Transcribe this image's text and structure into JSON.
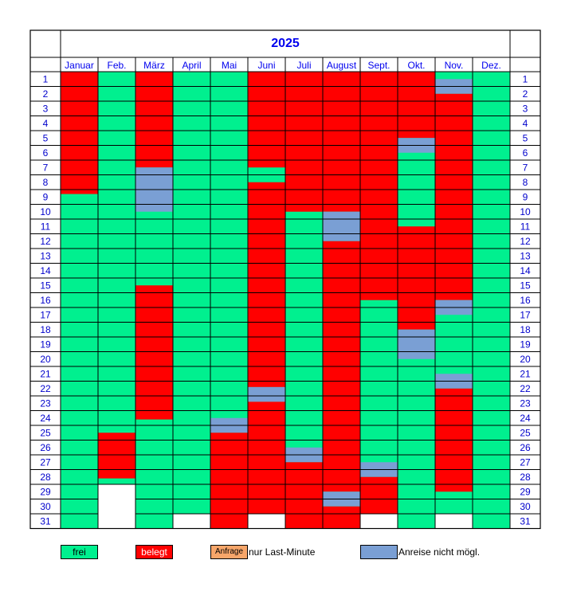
{
  "calendar": {
    "year": "2025",
    "months": [
      "Januar",
      "Feb.",
      "März",
      "April",
      "Mai",
      "Juni",
      "Juli",
      "August",
      "Sept.",
      "Okt.",
      "Nov.",
      "Dez."
    ],
    "month_days": [
      31,
      28,
      31,
      30,
      31,
      30,
      31,
      31,
      30,
      31,
      30,
      31
    ],
    "colors": {
      "frei": "#00F08F",
      "belegt": "#FF0000",
      "nicht": "#7A9FD4",
      "anfrage": "#F7A66A"
    },
    "bookings": [
      {
        "month": 0,
        "start": 1,
        "end": 9.3,
        "status": "belegt"
      },
      {
        "month": 2,
        "start": 1,
        "end": 7.5,
        "status": "belegt"
      },
      {
        "month": 2,
        "start": 7.5,
        "end": 10.5,
        "status": "nicht"
      },
      {
        "month": 2,
        "start": 15.5,
        "end": 24.6,
        "status": "belegt"
      },
      {
        "month": 1,
        "start": 25.5,
        "end": 28.6,
        "status": "belegt"
      },
      {
        "month": 4,
        "start": 24.5,
        "end": 25.5,
        "status": "nicht"
      },
      {
        "month": 4,
        "start": 25.5,
        "end": 32,
        "status": "belegt"
      },
      {
        "month": 5,
        "start": 1,
        "end": 7.5,
        "status": "belegt"
      },
      {
        "month": 5,
        "start": 8.5,
        "end": 22.4,
        "status": "belegt"
      },
      {
        "month": 5,
        "start": 22.4,
        "end": 23.4,
        "status": "nicht"
      },
      {
        "month": 5,
        "start": 23.4,
        "end": 31,
        "status": "belegt"
      },
      {
        "month": 6,
        "start": 1,
        "end": 10.5,
        "status": "belegt"
      },
      {
        "month": 6,
        "start": 26.5,
        "end": 27.5,
        "status": "nicht"
      },
      {
        "month": 6,
        "start": 27.5,
        "end": 32,
        "status": "belegt"
      },
      {
        "month": 7,
        "start": 1,
        "end": 10.5,
        "status": "belegt"
      },
      {
        "month": 7,
        "start": 10.5,
        "end": 12.5,
        "status": "nicht"
      },
      {
        "month": 7,
        "start": 12.5,
        "end": 29.5,
        "status": "belegt"
      },
      {
        "month": 7,
        "start": 29.5,
        "end": 30.5,
        "status": "nicht"
      },
      {
        "month": 7,
        "start": 30.5,
        "end": 32,
        "status": "belegt"
      },
      {
        "month": 8,
        "start": 1,
        "end": 16.5,
        "status": "belegt"
      },
      {
        "month": 8,
        "start": 27.5,
        "end": 28.5,
        "status": "nicht"
      },
      {
        "month": 8,
        "start": 28.5,
        "end": 31,
        "status": "belegt"
      },
      {
        "month": 9,
        "start": 1,
        "end": 5.5,
        "status": "belegt"
      },
      {
        "month": 9,
        "start": 5.5,
        "end": 6.5,
        "status": "nicht"
      },
      {
        "month": 9,
        "start": 11.5,
        "end": 18.5,
        "status": "belegt"
      },
      {
        "month": 9,
        "start": 18.5,
        "end": 20.5,
        "status": "nicht"
      },
      {
        "month": 10,
        "start": 1.5,
        "end": 2.5,
        "status": "nicht"
      },
      {
        "month": 10,
        "start": 2.5,
        "end": 16.5,
        "status": "belegt"
      },
      {
        "month": 10,
        "start": 16.5,
        "end": 17.5,
        "status": "nicht"
      },
      {
        "month": 10,
        "start": 21.5,
        "end": 22.5,
        "status": "nicht"
      },
      {
        "month": 10,
        "start": 22.5,
        "end": 29.5,
        "status": "belegt"
      }
    ]
  },
  "legend": {
    "frei": "frei",
    "belegt": "belegt",
    "anfrage": "Anfrage",
    "last_minute": "nur Last-Minute",
    "nicht": "Anreise nicht mögl."
  }
}
